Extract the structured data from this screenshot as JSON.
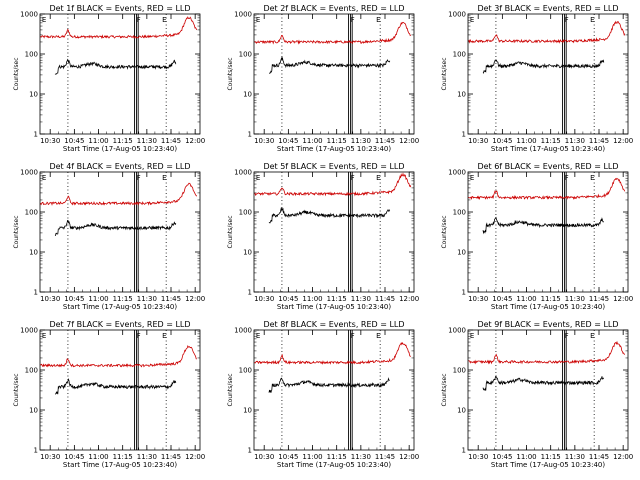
{
  "figure": {
    "panels": [
      {
        "title": "Det 1f BLACK = Events, RED = LLD",
        "black_base": 48,
        "red_base": 270
      },
      {
        "title": "Det 2f BLACK = Events, RED = LLD",
        "black_base": 52,
        "red_base": 200
      },
      {
        "title": "Det 3f BLACK = Events, RED = LLD",
        "black_base": 50,
        "red_base": 210
      },
      {
        "title": "Det 4f BLACK = Events, RED = LLD",
        "black_base": 40,
        "red_base": 165
      },
      {
        "title": "Det 5f BLACK = Events, RED = LLD",
        "black_base": 82,
        "red_base": 285
      },
      {
        "title": "Det 6f BLACK = Events, RED = LLD",
        "black_base": 47,
        "red_base": 230
      },
      {
        "title": "Det 7f BLACK = Events, RED = LLD",
        "black_base": 38,
        "red_base": 130
      },
      {
        "title": "Det 8f BLACK = Events, RED = LLD",
        "black_base": 42,
        "red_base": 155
      },
      {
        "title": "Det 9f BLACK = Events, RED = LLD",
        "black_base": 48,
        "red_base": 160
      }
    ],
    "ylabel": "Counts/sec",
    "xlabel": "Start Time (17-Aug-05 10:23:40)",
    "xticks": [
      "10:30",
      "10:45",
      "11:00",
      "11:15",
      "11:30",
      "11:45",
      "12:00"
    ],
    "yticks": [
      "1",
      "10",
      "100",
      "1000"
    ],
    "markers": {
      "E1": "E",
      "F": "F",
      "E2": "E"
    },
    "colors": {
      "events": "#000000",
      "lld": "#cc0000"
    }
  },
  "chart_data": {
    "type": "line",
    "scale": "log-y",
    "x_unit": "time HH:MM on 17-Aug-05",
    "xlim": [
      "10:23:40",
      "12:03"
    ],
    "ylim": [
      1,
      1000
    ],
    "series": [
      {
        "name": "BLACK = Events",
        "values": "per-panel black_base (Counts/sec), approx flat with bump near 11:45"
      },
      {
        "name": "RED = LLD",
        "values": "per-panel red_base (Counts/sec), rising peak near 11:55"
      }
    ],
    "vertical_lines": [
      "10:41",
      "11:23",
      "11:24",
      "11:42"
    ]
  }
}
